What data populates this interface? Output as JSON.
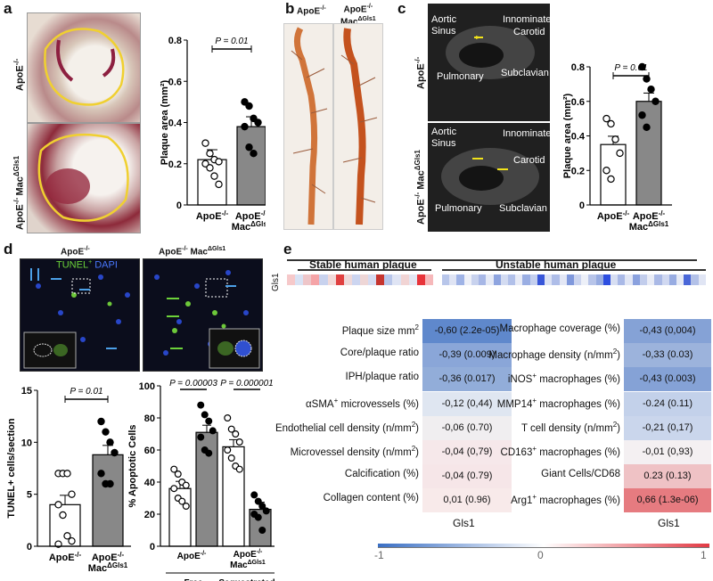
{
  "panels": {
    "a": "a",
    "b": "b",
    "c": "c",
    "d": "d",
    "e": "e"
  },
  "a": {
    "row1": "ApoE",
    "row1_sup": "-/-",
    "row2": "ApoE",
    "row2_sup": "-/- ",
    "row2_mac": "Mac",
    "row2_mac_sup": "ΔGls1"
  },
  "b": {
    "col1": "ApoE",
    "col1_sup": "-/-",
    "col2_l1": "ApoE",
    "col2_l1_sup": "-/-",
    "col2_l2": "Mac",
    "col2_l2_sup": "ΔGls1"
  },
  "c": {
    "row1": "ApoE",
    "row1_sup": "-/-",
    "row2": "ApoE",
    "row2_sup": "-/-",
    "row2_mac": " Mac",
    "row2_mac_sup": "ΔGls1",
    "top_labels": {
      "aortic": "Aortic",
      "sinus": "Sinus",
      "innominate": "Innominate",
      "carotid": "Carotid",
      "pulmonary": "Pulmonary",
      "subclavian": "Subclavian"
    },
    "bottom_labels": {
      "aortic": "Aortic",
      "sinus": "Sinus",
      "innominate": "Innominate",
      "carotid": "Carotid",
      "pulmonary": "Pulmonary",
      "subclavian": "Subclavian"
    }
  },
  "d": {
    "col1": "ApoE",
    "col1_sup": "-/-",
    "col2": "ApoE",
    "col2_sup": "-/-",
    "col2_mac": " Mac",
    "col2_mac_sup": "ΔGls1",
    "tunel": "TUNEL",
    "tunel_sup": "+",
    "dapi": "DAPI"
  },
  "e": {
    "gene": "Gls1",
    "stable": "Stable human plaque",
    "unstable": "Unstable human plaque",
    "stable_strip": [
      "#f6c9ca",
      "#d9e2f4",
      "#eec6c9",
      "#f5a4a7",
      "#c8d2ee",
      "#f2dad9",
      "#e04040",
      "#eed9da",
      "#ccd5f0",
      "#eed6d6",
      "#d6dcf2",
      "#c6352f",
      "#b8c6ea",
      "#dfe4f4",
      "#f1d4d4",
      "#e3e6f2",
      "#e8343a",
      "#f6b8ba"
    ],
    "unstable_strip": [
      "#b8c6ea",
      "#dfe4f4",
      "#9fb3e6",
      "#eef0f8",
      "#c8d2ee",
      "#a7b7e6",
      "#e6eaf6",
      "#8ea4df",
      "#d3dbf1",
      "#b1c0e9",
      "#e8ebf6",
      "#9aaee3",
      "#c4cfee",
      "#3856d9",
      "#dce2f4",
      "#aebde8",
      "#e3e7f5",
      "#7f98dc",
      "#cbd4ef",
      "#edf0f8",
      "#b7c4e9",
      "#96abe1",
      "#2d4ee0",
      "#d7def2",
      "#a9b9e7",
      "#e1e6f5",
      "#8aa1de",
      "#c2cdec",
      "#e9ecf6",
      "#aab9e6",
      "#d0d8f1",
      "#98ace2",
      "#e5e9f5",
      "#4a67d8",
      "#b3c1e8",
      "#e0e5f4"
    ],
    "left_rows": [
      {
        "label": "Plaque size mm",
        "label_sup": "2",
        "value": "-0,60 (2.2e-05)",
        "color": "#5f88cc"
      },
      {
        "label": "Core/plaque ratio",
        "label_sup": "",
        "value": "-0,39 (0.009)",
        "color": "#8aa6d8"
      },
      {
        "label": "IPH/plaque ratio",
        "label_sup": "",
        "value": "-0,36 (0.017)",
        "color": "#92add9"
      },
      {
        "label": "αSMA",
        "label_sup": "+",
        "label_tail": " microvessels (%)",
        "value": "-0,12 (0,44)",
        "color": "#dfe6f1"
      },
      {
        "label": "Endothelial cell density (n/mm",
        "label_sup": "2",
        "label_tail": ")",
        "value": "-0,06 (0.70)",
        "color": "#f0eef0"
      },
      {
        "label": "Microvessel density (n/mm",
        "label_sup": "2",
        "label_tail": ")",
        "value": "-0,04 (0,79)",
        "color": "#f6e8ea"
      },
      {
        "label": "Calcification (%)",
        "label_sup": "",
        "value": "-0,04 (0.79)",
        "color": "#f6e6e8"
      },
      {
        "label": "Collagen content (%)",
        "label_sup": "",
        "value": "0,01 (0.96)",
        "color": "#f8eaea"
      }
    ],
    "right_rows": [
      {
        "label": "Macrophage coverage (%)",
        "label_sup": "",
        "value": "-0,43 (0,004)",
        "color": "#85a2d6"
      },
      {
        "label": "Macrophage density (n/mm",
        "label_sup": "2",
        "label_tail": ")",
        "value": "-0,33 (0.03)",
        "color": "#9cb3dc"
      },
      {
        "label": "iNOS",
        "label_sup": "+",
        "label_tail": " macrophages (%)",
        "value": "-0,43 (0.003)",
        "color": "#85a2d6"
      },
      {
        "label": "MMP14",
        "label_sup": "+",
        "label_tail": " macrophages (%)",
        "value": "-0.24 (0.11)",
        "color": "#c3d1ea"
      },
      {
        "label": "T cell density (n/mm",
        "label_sup": "2",
        "label_tail": ")",
        "value": "-0,21 (0,17)",
        "color": "#cad6ec"
      },
      {
        "label": "CD163",
        "label_sup": "+",
        "label_tail": " macrophages (%)",
        "value": "-0,01 (0,93)",
        "color": "#f4f0f2"
      },
      {
        "label": "Giant Cells/CD68",
        "label_sup": "",
        "value": "0.23 (0.13)",
        "color": "#efc2c5"
      },
      {
        "label": "Arg1",
        "label_sup": "+",
        "label_tail": " macrophages (%)",
        "value": "0,66 (1.3e-06)",
        "color": "#e67b80"
      }
    ],
    "col_label_left": "Gls1",
    "col_label_right": "Gls1",
    "scale": {
      "min": "-1",
      "mid": "0",
      "max": "1"
    }
  },
  "chart_data": [
    {
      "type": "bar",
      "panel": "a",
      "categories": [
        "ApoE-/-",
        "ApoE-/- MacΔGls1"
      ],
      "values": [
        0.22,
        0.38
      ],
      "points": [
        [
          0.3,
          0.25,
          0.22,
          0.21,
          0.2,
          0.18,
          0.14,
          0.1
        ],
        [
          0.5,
          0.48,
          0.42,
          0.4,
          0.38,
          0.28,
          0.25
        ]
      ],
      "ylabel": "Plaque area (mm²)",
      "yticks": [
        0.0,
        0.2,
        0.4,
        0.6,
        0.8
      ],
      "ylim": [
        0,
        0.8
      ],
      "annotation": "P = 0.01"
    },
    {
      "type": "bar",
      "panel": "c",
      "categories": [
        "ApoE-/-",
        "ApoE-/- MacΔGls1"
      ],
      "values": [
        0.35,
        0.6
      ],
      "points": [
        [
          0.5,
          0.47,
          0.38,
          0.3,
          0.2,
          0.15
        ],
        [
          0.8,
          0.73,
          0.67,
          0.6,
          0.52,
          0.45
        ]
      ],
      "ylabel": "Plaque area (mm²)",
      "yticks": [
        0.0,
        0.2,
        0.4,
        0.6,
        0.8
      ],
      "ylim": [
        0,
        0.8
      ],
      "annotation": "P = 0.01"
    },
    {
      "type": "bar",
      "panel": "d-left",
      "categories": [
        "ApoE-/-",
        "ApoE-/- MacΔGls1"
      ],
      "values": [
        4.0,
        8.8
      ],
      "points": [
        [
          7,
          7,
          7,
          5,
          4,
          3,
          1,
          0.5,
          0.2
        ],
        [
          12,
          11,
          10,
          9,
          7,
          6,
          6
        ]
      ],
      "ylabel": "TUNEL+ cells/section",
      "yticks": [
        0,
        5,
        10,
        15
      ],
      "ylim": [
        0,
        15
      ],
      "annotation": "P = 0.01"
    },
    {
      "type": "bar",
      "panel": "d-right",
      "groups": [
        "Free",
        "Sequestrated"
      ],
      "categories": [
        "ApoE-/-",
        "ApoE-/- MacΔGls1"
      ],
      "series": [
        {
          "name": "ApoE-/-",
          "values": [
            36,
            62
          ],
          "points": [
            [
              48,
              45,
              40,
              38,
              36,
              30,
              28,
              25
            ],
            [
              80,
              73,
              70,
              65,
              60,
              55,
              50,
              48
            ]
          ]
        },
        {
          "name": "ApoE-/- MacΔGls1",
          "values": [
            71,
            23
          ],
          "points": [
            [
              88,
              82,
              78,
              72,
              68,
              60,
              58
            ],
            [
              32,
              28,
              25,
              22,
              20,
              18,
              10
            ]
          ]
        }
      ],
      "ylabel": "% Apoptotic Cells",
      "yticks": [
        0,
        20,
        40,
        60,
        80,
        100
      ],
      "ylim": [
        0,
        100
      ],
      "annotations": [
        "P = 0.00003",
        "P = 0.000001"
      ]
    }
  ]
}
